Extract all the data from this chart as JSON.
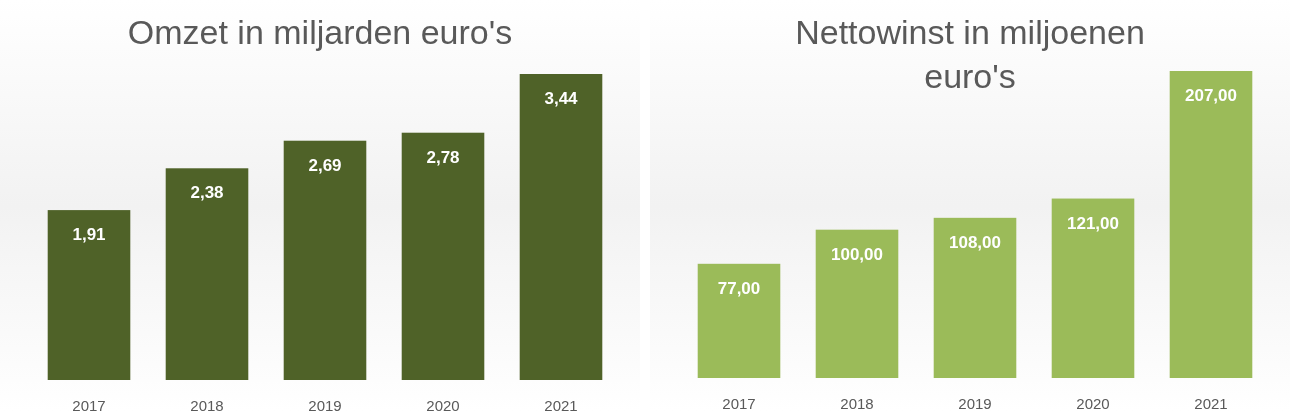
{
  "chart_data": [
    {
      "type": "bar",
      "title": "Omzet in miljarden euro's",
      "categories": [
        "2017",
        "2018",
        "2019",
        "2020",
        "2021"
      ],
      "values": [
        1.91,
        2.38,
        2.69,
        2.78,
        3.44
      ],
      "value_labels": [
        "1,91",
        "2,38",
        "2,69",
        "2,78",
        "3,44"
      ],
      "color": "#4f6228",
      "tick_labels": "x"
    },
    {
      "type": "bar",
      "title": "Nettowinst in miljoenen euro's",
      "categories": [
        "2017",
        "2018",
        "2019",
        "2020",
        "2021"
      ],
      "values": [
        77,
        100,
        108,
        121,
        207
      ],
      "value_labels": [
        "77,00",
        "100,00",
        "108,00",
        "121,00",
        "207,00"
      ],
      "color": "#9bbb59",
      "tick_labels": "x"
    }
  ]
}
